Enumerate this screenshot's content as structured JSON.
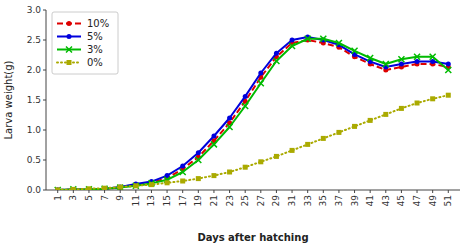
{
  "chart_data": {
    "type": "line",
    "xlabel": "Days after hatching",
    "ylabel": "Larva weight(g)",
    "x": [
      1,
      3,
      5,
      7,
      9,
      11,
      13,
      15,
      17,
      19,
      21,
      23,
      25,
      27,
      29,
      31,
      33,
      35,
      37,
      39,
      41,
      43,
      45,
      47,
      49,
      51
    ],
    "xlim": [
      -0.5,
      52.5
    ],
    "xticks": [
      1,
      3,
      5,
      7,
      9,
      11,
      13,
      15,
      17,
      19,
      21,
      23,
      25,
      27,
      29,
      31,
      33,
      35,
      37,
      39,
      41,
      43,
      45,
      47,
      49,
      51
    ],
    "ylim": [
      0.0,
      3.0
    ],
    "yticks": [
      0.0,
      0.5,
      1.0,
      1.5,
      2.0,
      2.5,
      3.0
    ],
    "grid": false,
    "legend": "upper left",
    "series": [
      {
        "name": "10%",
        "color": "#dd0000",
        "marker": "circle",
        "line_style": "dashed",
        "values": [
          0.0,
          0.01,
          0.01,
          0.02,
          0.04,
          0.08,
          0.12,
          0.2,
          0.35,
          0.55,
          0.82,
          1.12,
          1.48,
          1.88,
          2.22,
          2.45,
          2.5,
          2.45,
          2.38,
          2.22,
          2.1,
          2.0,
          2.05,
          2.1,
          2.1,
          2.05
        ]
      },
      {
        "name": "5%",
        "color": "#0000dd",
        "marker": "circle",
        "line_style": "solid",
        "values": [
          0.0,
          0.01,
          0.01,
          0.02,
          0.05,
          0.1,
          0.14,
          0.24,
          0.4,
          0.62,
          0.9,
          1.2,
          1.56,
          1.95,
          2.28,
          2.5,
          2.55,
          2.5,
          2.42,
          2.26,
          2.14,
          2.05,
          2.1,
          2.14,
          2.14,
          2.1
        ]
      },
      {
        "name": "3%",
        "color": "#00bb00",
        "marker": "x",
        "line_style": "solid",
        "values": [
          0.0,
          0.01,
          0.01,
          0.02,
          0.04,
          0.07,
          0.11,
          0.17,
          0.3,
          0.5,
          0.76,
          1.05,
          1.4,
          1.78,
          2.15,
          2.4,
          2.52,
          2.52,
          2.45,
          2.32,
          2.2,
          2.1,
          2.18,
          2.22,
          2.22,
          2.0
        ]
      },
      {
        "name": "0%",
        "color": "#aaaa00",
        "marker": "square",
        "line_style": "dotted",
        "values": [
          0.0,
          0.01,
          0.02,
          0.03,
          0.05,
          0.07,
          0.09,
          0.12,
          0.15,
          0.19,
          0.24,
          0.3,
          0.38,
          0.47,
          0.56,
          0.66,
          0.76,
          0.86,
          0.96,
          1.06,
          1.16,
          1.26,
          1.36,
          1.45,
          1.52,
          1.58
        ]
      }
    ]
  }
}
